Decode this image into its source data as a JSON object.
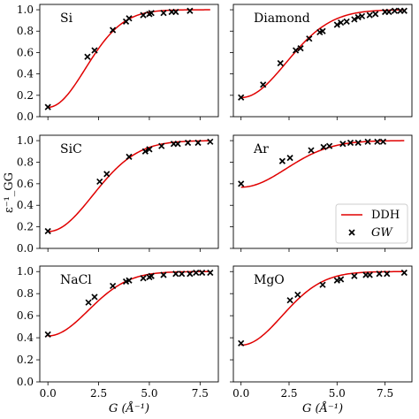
{
  "chart_data": {
    "type": "scatter",
    "layout": "3 rows x 2 columns, shared y axis per row, shared x axis per column",
    "xlabel": "G (Å⁻¹)",
    "ylabel": "ε⁻¹_GG",
    "ylim": [
      0.0,
      1.05
    ],
    "yticks": [
      "0.0",
      "0.2",
      "0.4",
      "0.6",
      "0.8",
      "1.0"
    ],
    "xticks_left": [
      "0.0",
      "2.5",
      "5.0",
      "7.5"
    ],
    "xticks_right": [
      "0.0",
      "2.5",
      "5.0",
      "7.5"
    ],
    "legend": {
      "panel": "Ar",
      "location": "lower right",
      "entries": [
        "DDH",
        "GW"
      ]
    },
    "colors": {
      "ddh_line": "#e00000",
      "gw_marker": "#000000"
    },
    "panels": [
      {
        "label": "Si",
        "column": "left",
        "xlim": [
          -0.4,
          8.4
        ],
        "curve_start": 0.0,
        "curve_end": 8.0,
        "ddh": {
          "eps_inf": 11.4,
          "mu": 1.3
        },
        "gw_points": [
          [
            0.0,
            0.09
          ],
          [
            1.95,
            0.56
          ],
          [
            2.3,
            0.62
          ],
          [
            3.2,
            0.81
          ],
          [
            3.85,
            0.89
          ],
          [
            4.0,
            0.92
          ],
          [
            4.7,
            0.95
          ],
          [
            5.0,
            0.96
          ],
          [
            5.1,
            0.97
          ],
          [
            5.7,
            0.97
          ],
          [
            6.1,
            0.98
          ],
          [
            6.3,
            0.98
          ],
          [
            7.0,
            0.99
          ]
        ]
      },
      {
        "label": "Diamond",
        "column": "right",
        "xlim": [
          -0.4,
          8.9
        ],
        "curve_start": 0.0,
        "curve_end": 8.5,
        "ddh": {
          "eps_inf": 5.6,
          "mu": 1.65
        },
        "gw_points": [
          [
            0.0,
            0.18
          ],
          [
            1.15,
            0.3
          ],
          [
            2.05,
            0.5
          ],
          [
            2.85,
            0.62
          ],
          [
            3.1,
            0.64
          ],
          [
            3.55,
            0.73
          ],
          [
            4.1,
            0.79
          ],
          [
            4.25,
            0.8
          ],
          [
            5.0,
            0.86
          ],
          [
            5.2,
            0.88
          ],
          [
            5.5,
            0.89
          ],
          [
            5.9,
            0.91
          ],
          [
            6.1,
            0.93
          ],
          [
            6.3,
            0.94
          ],
          [
            6.7,
            0.95
          ],
          [
            7.0,
            0.96
          ],
          [
            7.5,
            0.98
          ],
          [
            7.7,
            0.98
          ],
          [
            8.0,
            0.99
          ],
          [
            8.3,
            0.99
          ],
          [
            8.5,
            0.99
          ]
        ]
      },
      {
        "label": "SiC",
        "column": "left",
        "xlim": [
          -0.4,
          8.4
        ],
        "curve_start": 0.0,
        "curve_end": 8.0,
        "ddh": {
          "eps_inf": 6.4,
          "mu": 1.55
        },
        "gw_points": [
          [
            0.0,
            0.16
          ],
          [
            2.55,
            0.62
          ],
          [
            2.9,
            0.69
          ],
          [
            4.0,
            0.85
          ],
          [
            4.8,
            0.9
          ],
          [
            5.0,
            0.92
          ],
          [
            5.6,
            0.95
          ],
          [
            6.2,
            0.97
          ],
          [
            6.4,
            0.97
          ],
          [
            6.9,
            0.98
          ],
          [
            7.4,
            0.98
          ],
          [
            8.0,
            0.99
          ]
        ]
      },
      {
        "label": "Ar",
        "column": "right",
        "xlim": [
          -0.4,
          8.9
        ],
        "curve_start": 0.0,
        "curve_end": 8.5,
        "ddh": {
          "eps_inf": 1.76,
          "mu": 1.65
        },
        "gw_points": [
          [
            0.0,
            0.6
          ],
          [
            2.15,
            0.81
          ],
          [
            2.55,
            0.84
          ],
          [
            3.65,
            0.91
          ],
          [
            4.3,
            0.94
          ],
          [
            4.6,
            0.95
          ],
          [
            5.3,
            0.97
          ],
          [
            5.7,
            0.98
          ],
          [
            6.1,
            0.98
          ],
          [
            6.6,
            0.99
          ],
          [
            7.1,
            0.99
          ],
          [
            7.4,
            0.99
          ]
        ]
      },
      {
        "label": "NaCl",
        "column": "left",
        "xlim": [
          -0.4,
          8.4
        ],
        "curve_start": 0.0,
        "curve_end": 8.0,
        "ddh": {
          "eps_inf": 2.4,
          "mu": 1.4
        },
        "gw_points": [
          [
            0.0,
            0.43
          ],
          [
            2.0,
            0.72
          ],
          [
            2.3,
            0.77
          ],
          [
            3.2,
            0.87
          ],
          [
            3.85,
            0.91
          ],
          [
            4.0,
            0.92
          ],
          [
            4.7,
            0.94
          ],
          [
            5.0,
            0.95
          ],
          [
            5.1,
            0.96
          ],
          [
            5.7,
            0.97
          ],
          [
            6.3,
            0.98
          ],
          [
            6.6,
            0.98
          ],
          [
            7.0,
            0.98
          ],
          [
            7.3,
            0.99
          ],
          [
            7.6,
            0.99
          ],
          [
            8.0,
            0.99
          ]
        ]
      },
      {
        "label": "MgO",
        "column": "right",
        "xlim": [
          -0.4,
          8.9
        ],
        "curve_start": 0.0,
        "curve_end": 8.5,
        "ddh": {
          "eps_inf": 3.0,
          "mu": 1.5
        },
        "gw_points": [
          [
            0.0,
            0.35
          ],
          [
            2.55,
            0.74
          ],
          [
            2.95,
            0.79
          ],
          [
            4.25,
            0.88
          ],
          [
            5.0,
            0.92
          ],
          [
            5.2,
            0.93
          ],
          [
            5.9,
            0.96
          ],
          [
            6.5,
            0.97
          ],
          [
            6.7,
            0.97
          ],
          [
            7.2,
            0.98
          ],
          [
            7.6,
            0.98
          ],
          [
            8.5,
            0.99
          ]
        ]
      }
    ]
  }
}
